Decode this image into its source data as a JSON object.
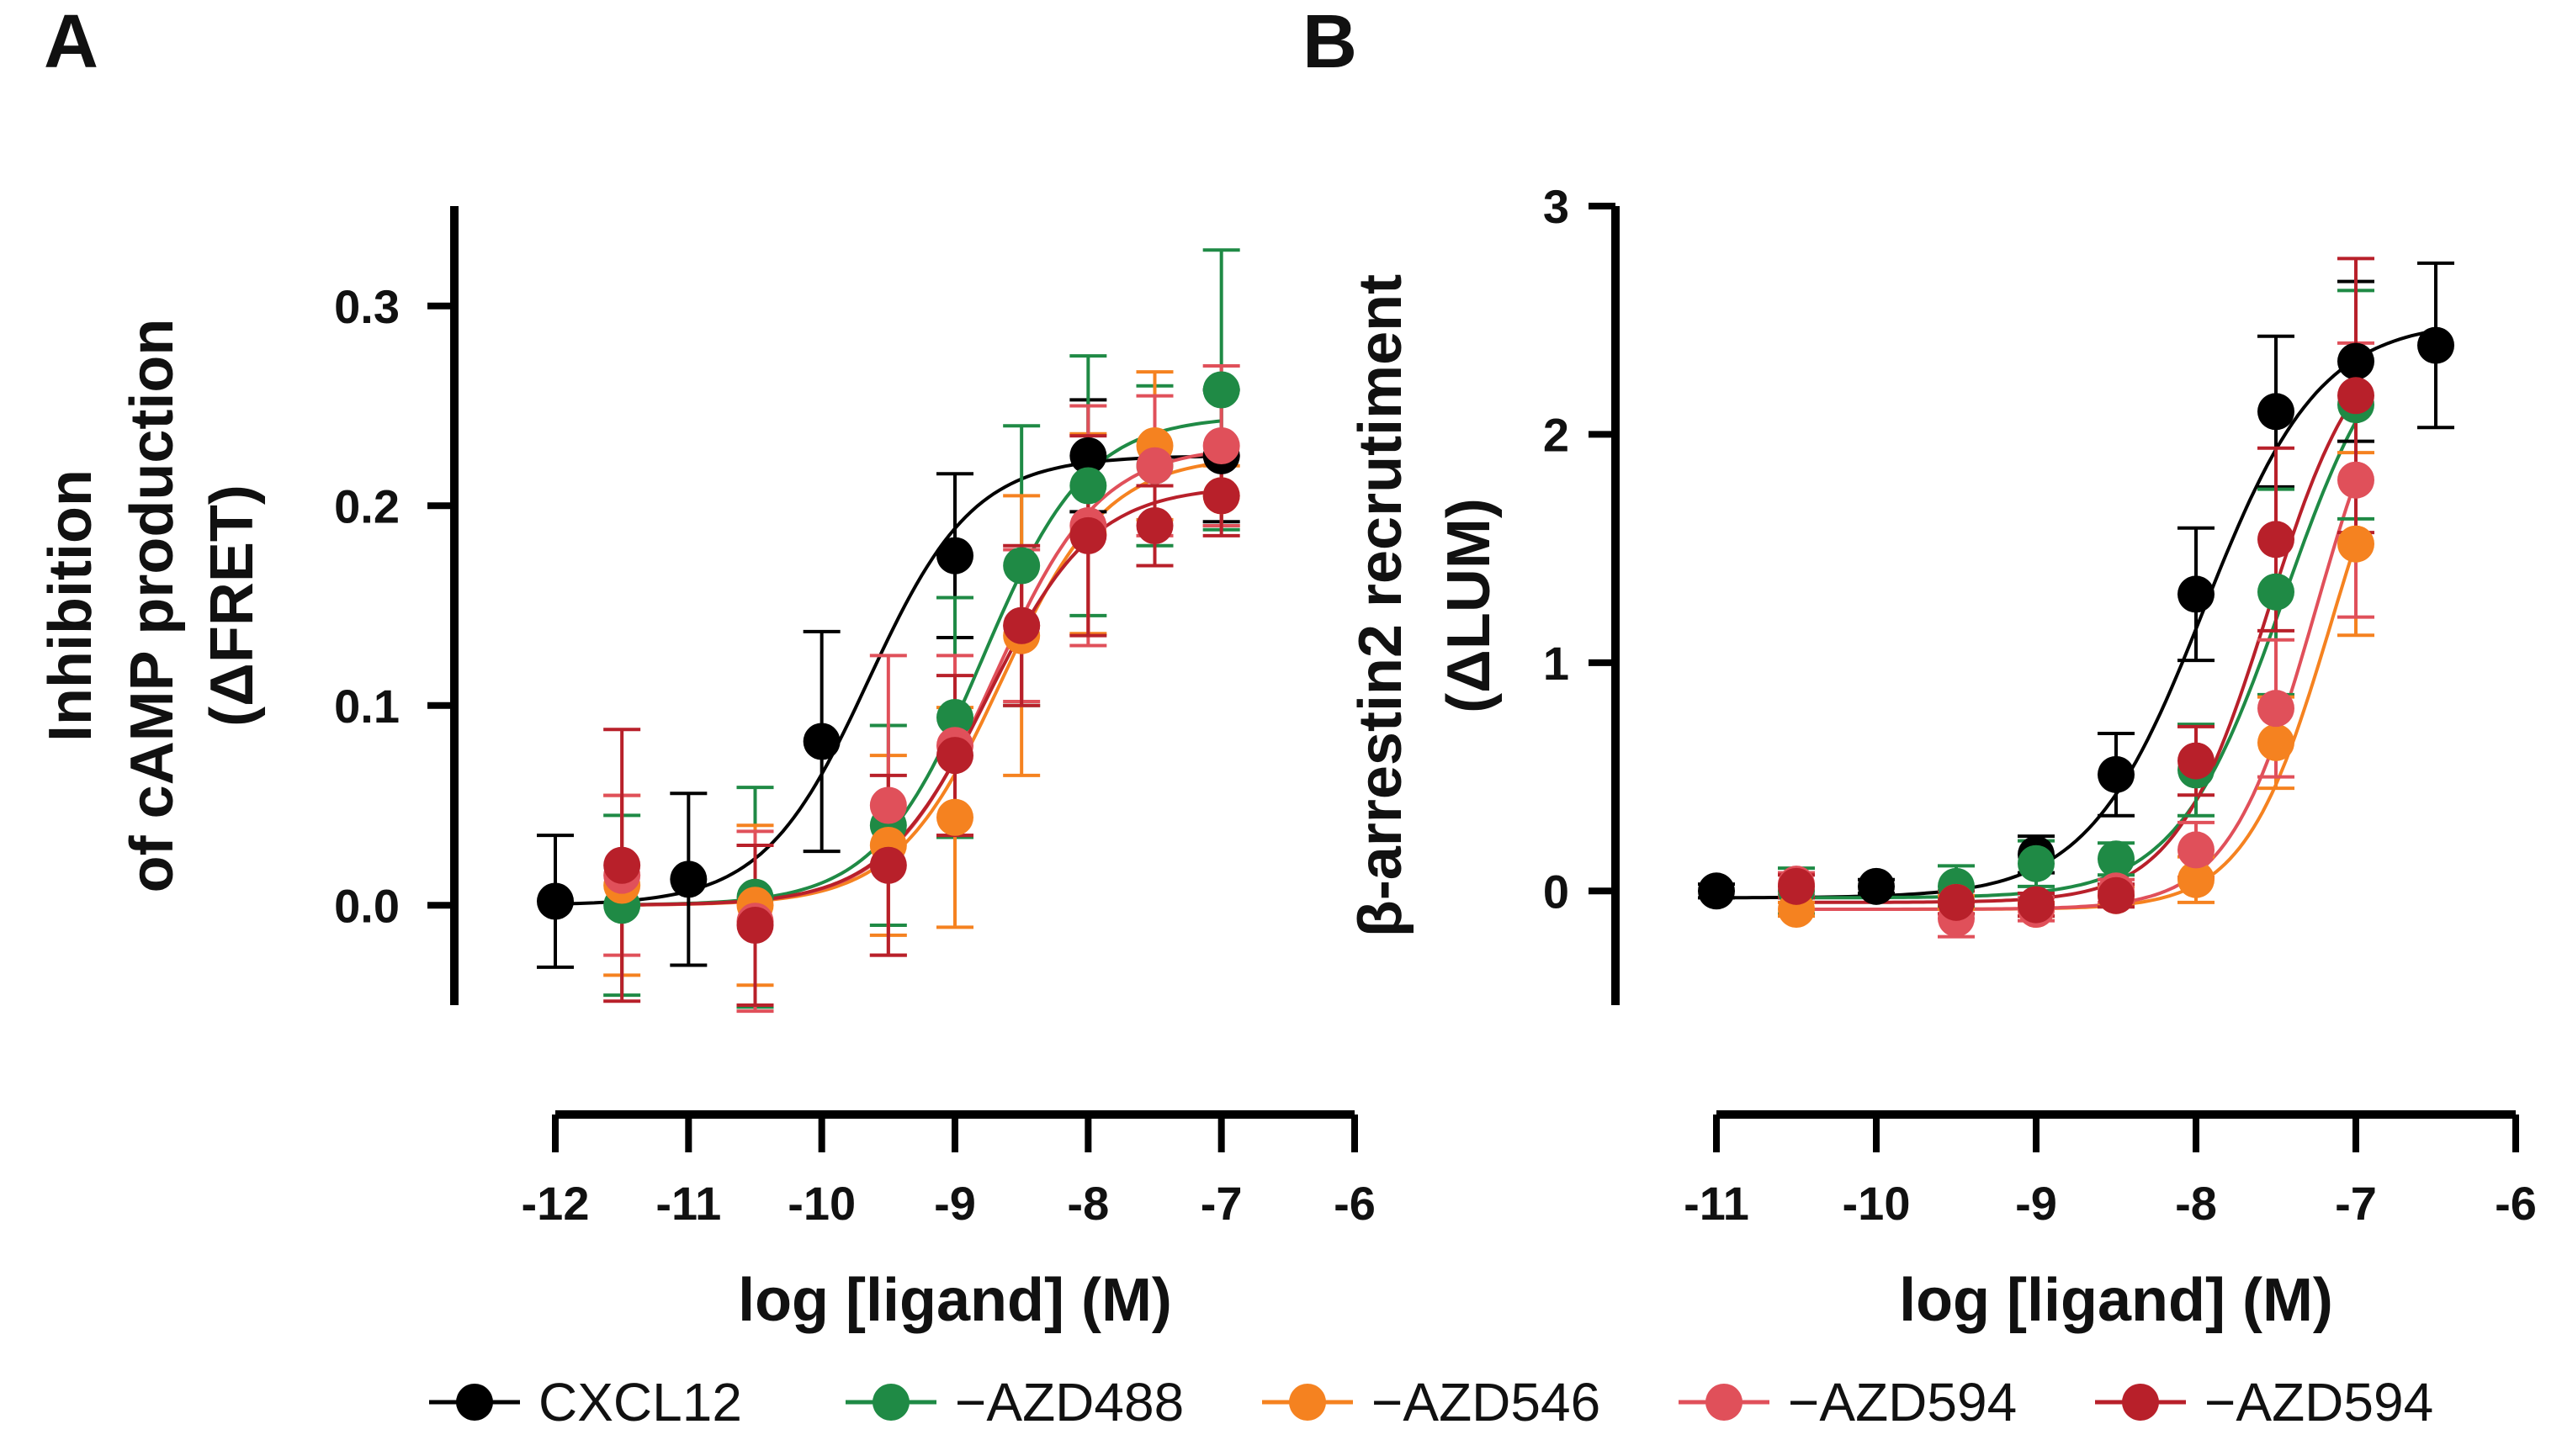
{
  "chart_data": [
    {
      "panel": "A",
      "type": "scatter",
      "xlabel": "log [ligand] (M)",
      "ylabel_lines": [
        "Inhibition",
        "of cAMP production",
        "(ΔFRET)"
      ],
      "xlim": [
        -12,
        -6
      ],
      "ylim": [
        -0.05,
        0.35
      ],
      "xticks": [
        -12,
        -11,
        -10,
        -9,
        -8,
        -7,
        -6
      ],
      "xtick_labels": [
        "-12",
        "-11",
        "-10",
        "-9",
        "-8",
        "-7",
        "-6"
      ],
      "yticks": [
        0.0,
        0.1,
        0.2,
        0.3
      ],
      "ytick_labels": [
        "0.0",
        "0.1",
        "0.2",
        "0.3"
      ],
      "series": [
        {
          "name": "CXCL12",
          "color": "#000000",
          "x": [
            -12,
            -11,
            -10,
            -9,
            -8,
            -7
          ],
          "y": [
            0.002,
            0.013,
            0.082,
            0.175,
            0.225,
            0.225
          ],
          "err": [
            0.033,
            0.043,
            0.055,
            0.041,
            0.028,
            0.033
          ],
          "fit": {
            "bottom": 0.0,
            "top": 0.225,
            "logec50": -9.65,
            "hill": 1.1
          }
        },
        {
          "name": "−AZD488",
          "color": "#1f8a45",
          "x": [
            -11.5,
            -10.5,
            -9.5,
            -9,
            -8.5,
            -8,
            -7.5,
            -7
          ],
          "y": [
            0.0,
            0.004,
            0.04,
            0.094,
            0.17,
            0.21,
            0.22,
            0.258
          ],
          "err": [
            0.045,
            0.055,
            0.05,
            0.06,
            0.07,
            0.065,
            0.04,
            0.07
          ],
          "fit": {
            "bottom": 0.0,
            "top": 0.245,
            "logec50": -8.8,
            "hill": 1.1
          }
        },
        {
          "name": "−AZD546",
          "color": "#f58220",
          "x": [
            -11.5,
            -10.5,
            -9.5,
            -9,
            -8.5,
            -8,
            -7.5,
            -7
          ],
          "y": [
            0.01,
            0.0,
            0.03,
            0.044,
            0.135,
            0.186,
            0.23,
            0.205
          ],
          "err": [
            0.045,
            0.04,
            0.045,
            0.055,
            0.07,
            0.05,
            0.037,
            0.015
          ],
          "fit": {
            "bottom": 0.0,
            "top": 0.225,
            "logec50": -8.65,
            "hill": 1.1
          }
        },
        {
          "name": "−AZD594",
          "color": "#e0505a",
          "x": [
            -11.5,
            -10.5,
            -9.5,
            -9,
            -8.5,
            -8,
            -7.5,
            -7
          ],
          "y": [
            0.015,
            -0.008,
            0.05,
            0.08,
            0.14,
            0.19,
            0.22,
            0.23
          ],
          "err": [
            0.04,
            0.045,
            0.075,
            0.045,
            0.038,
            0.06,
            0.035,
            0.04
          ],
          "fit": {
            "bottom": 0.0,
            "top": 0.23,
            "logec50": -8.7,
            "hill": 1.1
          }
        },
        {
          "name": "−AZD594",
          "color": "#b8202a",
          "x": [
            -11.5,
            -10.5,
            -9.5,
            -9,
            -8.5,
            -8,
            -7.5,
            -7
          ],
          "y": [
            0.02,
            -0.01,
            0.02,
            0.075,
            0.14,
            0.185,
            0.19,
            0.205
          ],
          "err": [
            0.068,
            0.04,
            0.045,
            0.04,
            0.04,
            0.05,
            0.02,
            0.02
          ],
          "fit": {
            "bottom": 0.0,
            "top": 0.21,
            "logec50": -8.75,
            "hill": 1.1
          }
        }
      ]
    },
    {
      "panel": "B",
      "type": "scatter",
      "xlabel": "log [ligand] (M)",
      "ylabel_lines": [
        "β-arrestin2 recrutiment",
        "(ΔLUM)"
      ],
      "xlim": [
        -11,
        -6
      ],
      "ylim": [
        -0.5,
        3
      ],
      "xticks": [
        -11,
        -10,
        -9,
        -8,
        -7,
        -6
      ],
      "xtick_labels": [
        "-11",
        "-10",
        "-9",
        "-8",
        "-7",
        "-6"
      ],
      "yticks": [
        0,
        1,
        2,
        3
      ],
      "ytick_labels": [
        "0",
        "1",
        "2",
        "3"
      ],
      "series": [
        {
          "name": "CXCL12",
          "color": "#000000",
          "x": [
            -11,
            -10,
            -9,
            -8.5,
            -8,
            -7.5,
            -7,
            -6.5
          ],
          "y": [
            0.0,
            0.02,
            0.16,
            0.51,
            1.3,
            2.1,
            2.32,
            2.39
          ],
          "err": [
            0.03,
            0.03,
            0.08,
            0.18,
            0.29,
            0.33,
            0.35,
            0.36
          ],
          "fit": {
            "bottom": -0.03,
            "top": 2.5,
            "logec50": -7.95,
            "hill": 1.2
          }
        },
        {
          "name": "−AZD488",
          "color": "#1f8a45",
          "x": [
            -10.5,
            -9.5,
            -9,
            -8.5,
            -8,
            -7.5,
            -7
          ],
          "y": [
            0.0,
            0.02,
            0.12,
            0.14,
            0.53,
            1.31,
            2.13
          ],
          "err": [
            0.1,
            0.09,
            0.1,
            0.07,
            0.2,
            0.45,
            0.5
          ],
          "fit": {
            "bottom": -0.03,
            "top": 2.6,
            "logec50": -7.45,
            "hill": 1.3
          }
        },
        {
          "name": "−AZD546",
          "color": "#f58220",
          "x": [
            -10.5,
            -9.5,
            -9,
            -8.5,
            -8,
            -7.5,
            -7
          ],
          "y": [
            -0.08,
            -0.05,
            -0.08,
            -0.02,
            0.05,
            0.65,
            1.52
          ],
          "err": [
            0.03,
            0.03,
            0.03,
            0.04,
            0.1,
            0.2,
            0.4
          ],
          "fit": {
            "bottom": -0.08,
            "top": 2.45,
            "logec50": -7.15,
            "hill": 1.6
          }
        },
        {
          "name": "−AZD594",
          "color": "#e0505a",
          "x": [
            -10.5,
            -9.5,
            -9,
            -8.5,
            -8,
            -7.5,
            -7
          ],
          "y": [
            0.03,
            -0.12,
            -0.08,
            0.0,
            0.18,
            0.8,
            1.8
          ],
          "err": [
            0.05,
            0.08,
            0.05,
            0.05,
            0.12,
            0.3,
            0.6
          ],
          "fit": {
            "bottom": -0.08,
            "top": 2.55,
            "logec50": -7.25,
            "hill": 1.6
          }
        },
        {
          "name": "−AZD594",
          "color": "#b8202a",
          "x": [
            -10.5,
            -9.5,
            -9,
            -8.5,
            -8,
            -7.5,
            -7
          ],
          "y": [
            0.02,
            -0.05,
            -0.06,
            -0.02,
            0.57,
            1.54,
            2.17
          ],
          "err": [
            0.05,
            0.05,
            0.05,
            0.05,
            0.15,
            0.4,
            0.6
          ],
          "fit": {
            "bottom": -0.05,
            "top": 2.5,
            "logec50": -7.55,
            "hill": 1.5
          }
        }
      ]
    }
  ],
  "legend": [
    {
      "label": "CXCL12",
      "color": "#000000"
    },
    {
      "label": "−AZD488",
      "color": "#1f8a45"
    },
    {
      "label": "−AZD546",
      "color": "#f58220"
    },
    {
      "label": "−AZD594",
      "color": "#e0505a"
    },
    {
      "label": "−AZD594",
      "color": "#b8202a"
    }
  ]
}
